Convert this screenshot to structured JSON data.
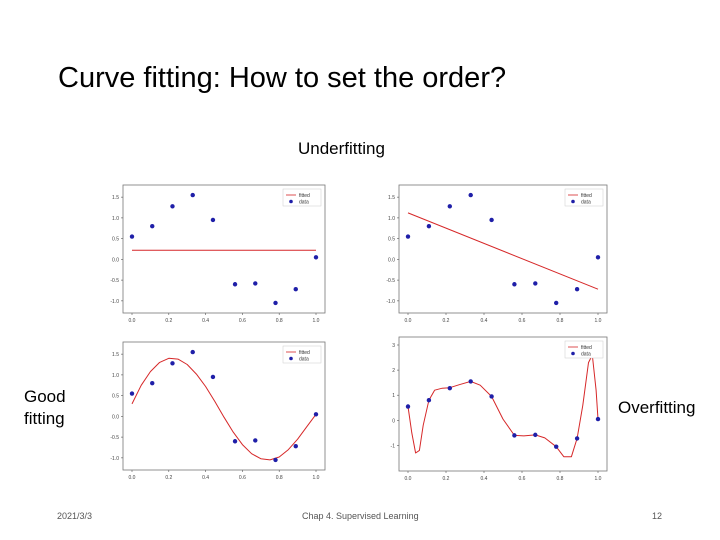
{
  "slide": {
    "title": "Curve fitting: How to set the order?",
    "labels": {
      "underfitting": "Underfitting",
      "good_fitting": "Good fitting",
      "overfitting": "Overfitting"
    },
    "footer": {
      "date": "2021/3/3",
      "chapter": "Chap 4. Supervised Learning",
      "page": "12"
    }
  },
  "colors": {
    "fitted": "#d62728",
    "data": "#1f1fa8",
    "frame": "#777777"
  },
  "chart_data": [
    {
      "type": "scatter",
      "xlim": [
        0,
        1
      ],
      "ylim": [
        -1.1,
        1.6
      ],
      "xticks": [
        "0.0",
        "0.2",
        "0.4",
        "0.6",
        "0.8",
        "1.0"
      ],
      "yticks": [
        "1.5",
        "1.0",
        "0.5",
        "0.0",
        "-0.5",
        "-1.0"
      ],
      "legend": [
        "fitted",
        "data"
      ],
      "legend_position": "top-right",
      "data": {
        "x": [
          0.0,
          0.11,
          0.22,
          0.33,
          0.44,
          0.56,
          0.67,
          0.78,
          0.89,
          1.0
        ],
        "y": [
          0.55,
          0.8,
          1.28,
          1.55,
          0.95,
          -0.6,
          -0.58,
          -1.05,
          -0.72,
          0.05
        ]
      },
      "fitted": {
        "x": [
          0.0,
          1.0
        ],
        "y": [
          0.22,
          0.22
        ]
      }
    },
    {
      "type": "scatter",
      "xlim": [
        0,
        1
      ],
      "ylim": [
        -1.1,
        1.6
      ],
      "xticks": [
        "0.0",
        "0.2",
        "0.4",
        "0.6",
        "0.8",
        "1.0"
      ],
      "yticks": [
        "1.5",
        "1.0",
        "0.5",
        "0.0",
        "-0.5",
        "-1.0"
      ],
      "legend": [
        "fitted",
        "data"
      ],
      "legend_position": "top-right",
      "data": {
        "x": [
          0.0,
          0.11,
          0.22,
          0.33,
          0.44,
          0.56,
          0.67,
          0.78,
          0.89,
          1.0
        ],
        "y": [
          0.55,
          0.8,
          1.28,
          1.55,
          0.95,
          -0.6,
          -0.58,
          -1.05,
          -0.72,
          0.05
        ]
      },
      "fitted": {
        "x": [
          0.0,
          1.0
        ],
        "y": [
          1.12,
          -0.72
        ]
      }
    },
    {
      "type": "scatter",
      "xlim": [
        0,
        1
      ],
      "ylim": [
        -1.1,
        1.6
      ],
      "xticks": [
        "0.0",
        "0.2",
        "0.4",
        "0.6",
        "0.8",
        "1.0"
      ],
      "yticks": [
        "1.5",
        "1.0",
        "0.5",
        "0.0",
        "-0.5",
        "-1.0"
      ],
      "legend": [
        "fitted",
        "data"
      ],
      "legend_position": "top-right",
      "data": {
        "x": [
          0.0,
          0.11,
          0.22,
          0.33,
          0.44,
          0.56,
          0.67,
          0.78,
          0.89,
          1.0
        ],
        "y": [
          0.55,
          0.8,
          1.28,
          1.55,
          0.95,
          -0.6,
          -0.58,
          -1.05,
          -0.72,
          0.05
        ]
      },
      "fitted": {
        "x": [
          0.0,
          0.05,
          0.1,
          0.15,
          0.2,
          0.25,
          0.3,
          0.35,
          0.4,
          0.45,
          0.5,
          0.55,
          0.6,
          0.65,
          0.7,
          0.75,
          0.8,
          0.85,
          0.9,
          0.95,
          1.0
        ],
        "y": [
          0.3,
          0.75,
          1.08,
          1.3,
          1.4,
          1.38,
          1.25,
          1.02,
          0.72,
          0.36,
          -0.02,
          -0.38,
          -0.68,
          -0.9,
          -1.02,
          -1.05,
          -0.98,
          -0.8,
          -0.55,
          -0.25,
          0.05
        ]
      }
    },
    {
      "type": "scatter",
      "xlim": [
        0,
        1
      ],
      "ylim": [
        -1.7,
        3.0
      ],
      "xticks": [
        "0.0",
        "0.2",
        "0.4",
        "0.6",
        "0.8",
        "1.0"
      ],
      "yticks": [
        "3",
        "2",
        "1",
        "0",
        "-1"
      ],
      "legend": [
        "fitted",
        "data"
      ],
      "legend_position": "top-right",
      "data": {
        "x": [
          0.0,
          0.11,
          0.22,
          0.33,
          0.44,
          0.56,
          0.67,
          0.78,
          0.89,
          1.0
        ],
        "y": [
          0.55,
          0.8,
          1.28,
          1.55,
          0.95,
          -0.6,
          -0.58,
          -1.05,
          -0.72,
          0.05
        ]
      },
      "fitted": {
        "x": [
          0.0,
          0.02,
          0.04,
          0.06,
          0.08,
          0.11,
          0.14,
          0.18,
          0.22,
          0.27,
          0.33,
          0.38,
          0.44,
          0.5,
          0.56,
          0.61,
          0.67,
          0.72,
          0.78,
          0.82,
          0.86,
          0.89,
          0.92,
          0.95,
          0.97,
          0.99,
          1.0
        ],
        "y": [
          0.55,
          -0.5,
          -1.3,
          -1.2,
          -0.2,
          0.8,
          1.2,
          1.28,
          1.3,
          1.42,
          1.55,
          1.4,
          0.95,
          0.05,
          -0.6,
          -0.62,
          -0.58,
          -0.7,
          -1.05,
          -1.45,
          -1.45,
          -0.72,
          0.6,
          2.3,
          2.6,
          1.2,
          0.05
        ]
      }
    }
  ]
}
